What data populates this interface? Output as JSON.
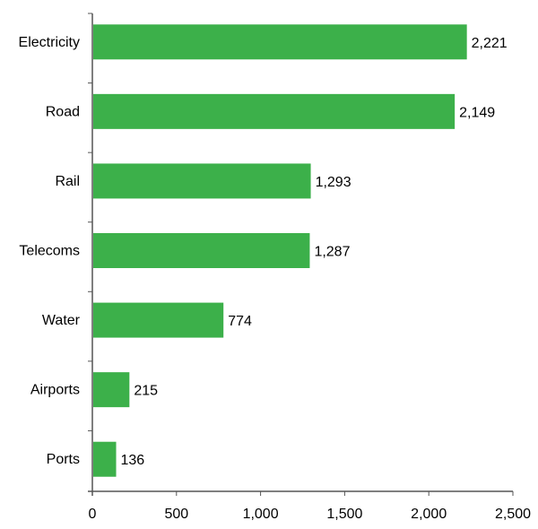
{
  "chart_data": {
    "type": "bar",
    "orientation": "horizontal",
    "title": "",
    "xlabel": "",
    "ylabel": "",
    "categories": [
      "Electricity",
      "Road",
      "Rail",
      "Telecoms",
      "Water",
      "Airports",
      "Ports"
    ],
    "values": [
      2221,
      2149,
      1293,
      1287,
      774,
      215,
      136
    ],
    "value_labels": [
      "2,221",
      "2,149",
      "1,293",
      "1,287",
      "774",
      "215",
      "136"
    ],
    "xlim": [
      0,
      2500
    ],
    "x_ticks": [
      0,
      500,
      1000,
      1500,
      2000,
      2500
    ],
    "x_tick_labels": [
      "0",
      "500",
      "1,000",
      "1,500",
      "2,000",
      "2,500"
    ],
    "grid": false,
    "legend": null,
    "colors": {
      "bar": "#3cb04a",
      "axis": "#555555"
    }
  }
}
